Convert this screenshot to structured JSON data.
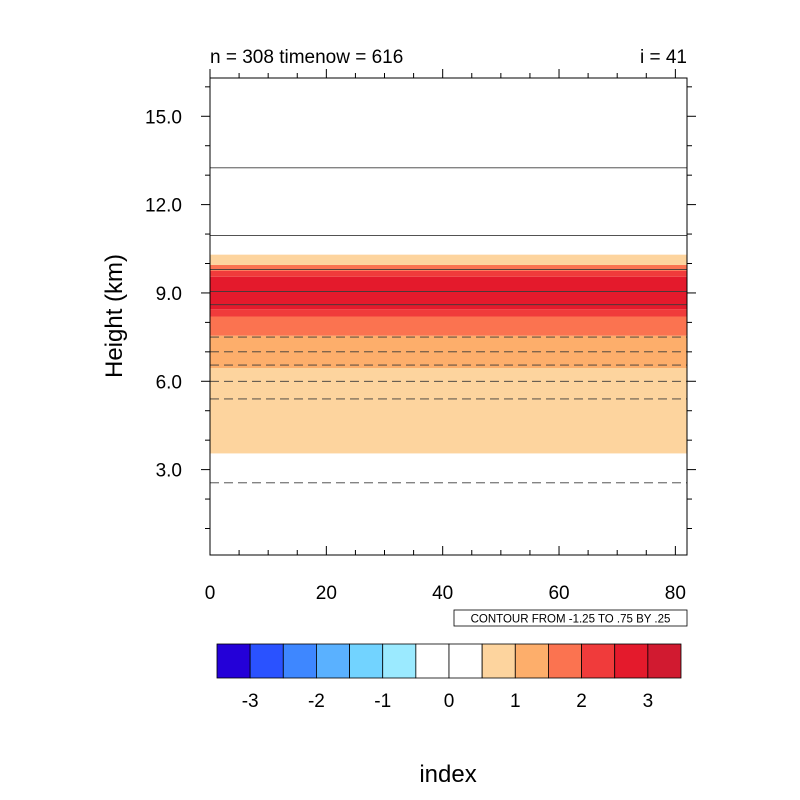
{
  "chart_data": {
    "type": "heatmap",
    "title_left": "n = 308 timenow = 616",
    "title_right": "i = 41",
    "xlabel": "index",
    "ylabel": "Height (km)",
    "xlim": [
      0,
      82
    ],
    "ylim": [
      0.1,
      16.3
    ],
    "x_ticks": [
      0,
      20,
      40,
      60,
      80
    ],
    "x_tick_labels": [
      "0",
      "20",
      "40",
      "60",
      "80"
    ],
    "y_ticks": [
      3.0,
      6.0,
      9.0,
      12.0,
      15.0
    ],
    "y_tick_labels": [
      "3.0",
      "6.0",
      "9.0",
      "12.0",
      "15.0"
    ],
    "info_label": "CONTOUR FROM -1.25 TO .75 BY .25",
    "filled_bands": [
      {
        "y0": 3.55,
        "y1": 6.45,
        "color": "#fdd49e"
      },
      {
        "y0": 6.45,
        "y1": 7.55,
        "color": "#fdae6b"
      },
      {
        "y0": 7.55,
        "y1": 8.2,
        "color": "#fb7350"
      },
      {
        "y0": 8.2,
        "y1": 8.45,
        "color": "#f03b3b"
      },
      {
        "y0": 8.45,
        "y1": 9.55,
        "color": "#e41a2c"
      },
      {
        "y0": 9.55,
        "y1": 9.75,
        "color": "#f03b3b"
      },
      {
        "y0": 9.75,
        "y1": 9.95,
        "color": "#fb7350"
      },
      {
        "y0": 9.95,
        "y1": 10.3,
        "color": "#fdd49e"
      }
    ],
    "contour_lines": [
      {
        "y": 2.55,
        "style": "dashed"
      },
      {
        "y": 5.4,
        "style": "dashed"
      },
      {
        "y": 6.0,
        "style": "dashed"
      },
      {
        "y": 6.55,
        "style": "dashed"
      },
      {
        "y": 7.0,
        "style": "dashed"
      },
      {
        "y": 7.5,
        "style": "dashed"
      },
      {
        "y": 8.6,
        "style": "solid"
      },
      {
        "y": 9.05,
        "style": "solid"
      },
      {
        "y": 9.8,
        "style": "solid"
      },
      {
        "y": 10.95,
        "style": "solid"
      },
      {
        "y": 13.25,
        "style": "solid"
      }
    ],
    "colorbar": {
      "colors": [
        "#2400d8",
        "#2a52ff",
        "#3e87ff",
        "#5ab1ff",
        "#72d3ff",
        "#9beaff",
        "#ffffff",
        "#ffffff",
        "#fdd49e",
        "#fdae6b",
        "#fb7350",
        "#f03b3b",
        "#e41a2c",
        "#d11a30"
      ],
      "labels": [
        "-3",
        "-2",
        "-1",
        "0",
        "1",
        "2",
        "3"
      ]
    }
  }
}
